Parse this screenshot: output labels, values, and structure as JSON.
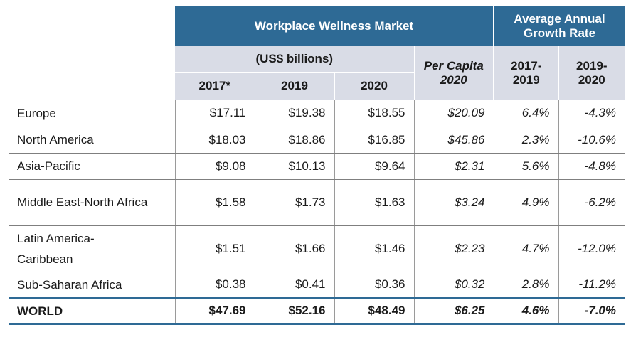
{
  "header": {
    "market_title": "Workplace Wellness Market",
    "growth_title": "Average Annual Growth Rate",
    "units": "(US$ billions)",
    "per_capita": "Per Capita 2020",
    "col_2017": "2017*",
    "col_2019": "2019",
    "col_2020": "2020",
    "growth_1": "2017-\n2019",
    "growth_2": "2019-\n2020"
  },
  "rows": [
    {
      "region": "Europe",
      "v2017": "$17.11",
      "v2019": "$19.38",
      "v2020": "$18.55",
      "per_capita": "$20.09",
      "g1": "6.4%",
      "g2": "-4.3%"
    },
    {
      "region": "North America",
      "v2017": "$18.03",
      "v2019": "$18.86",
      "v2020": "$16.85",
      "per_capita": "$45.86",
      "g1": "2.3%",
      "g2": "-10.6%"
    },
    {
      "region": "Asia-Pacific",
      "v2017": "$9.08",
      "v2019": "$10.13",
      "v2020": "$9.64",
      "per_capita": "$2.31",
      "g1": "5.6%",
      "g2": "-4.8%"
    },
    {
      "region": "Middle East-North Africa",
      "v2017": "$1.58",
      "v2019": "$1.73",
      "v2020": "$1.63",
      "per_capita": "$3.24",
      "g1": "4.9%",
      "g2": "-6.2%"
    },
    {
      "region": "Latin America-Caribbean",
      "v2017": "$1.51",
      "v2019": "$1.66",
      "v2020": "$1.46",
      "per_capita": "$2.23",
      "g1": "4.7%",
      "g2": "-12.0%"
    },
    {
      "region": "Sub-Saharan Africa",
      "v2017": "$0.38",
      "v2019": "$0.41",
      "v2020": "$0.36",
      "per_capita": "$0.32",
      "g1": "2.8%",
      "g2": "-11.2%"
    }
  ],
  "world": {
    "region": "WORLD",
    "v2017": "$47.69",
    "v2019": "$52.16",
    "v2020": "$48.49",
    "per_capita": "$6.25",
    "g1": "4.6%",
    "g2": "-7.0%"
  },
  "colors": {
    "header_dark": "#2E6A95",
    "header_light": "#D9DCE6"
  }
}
